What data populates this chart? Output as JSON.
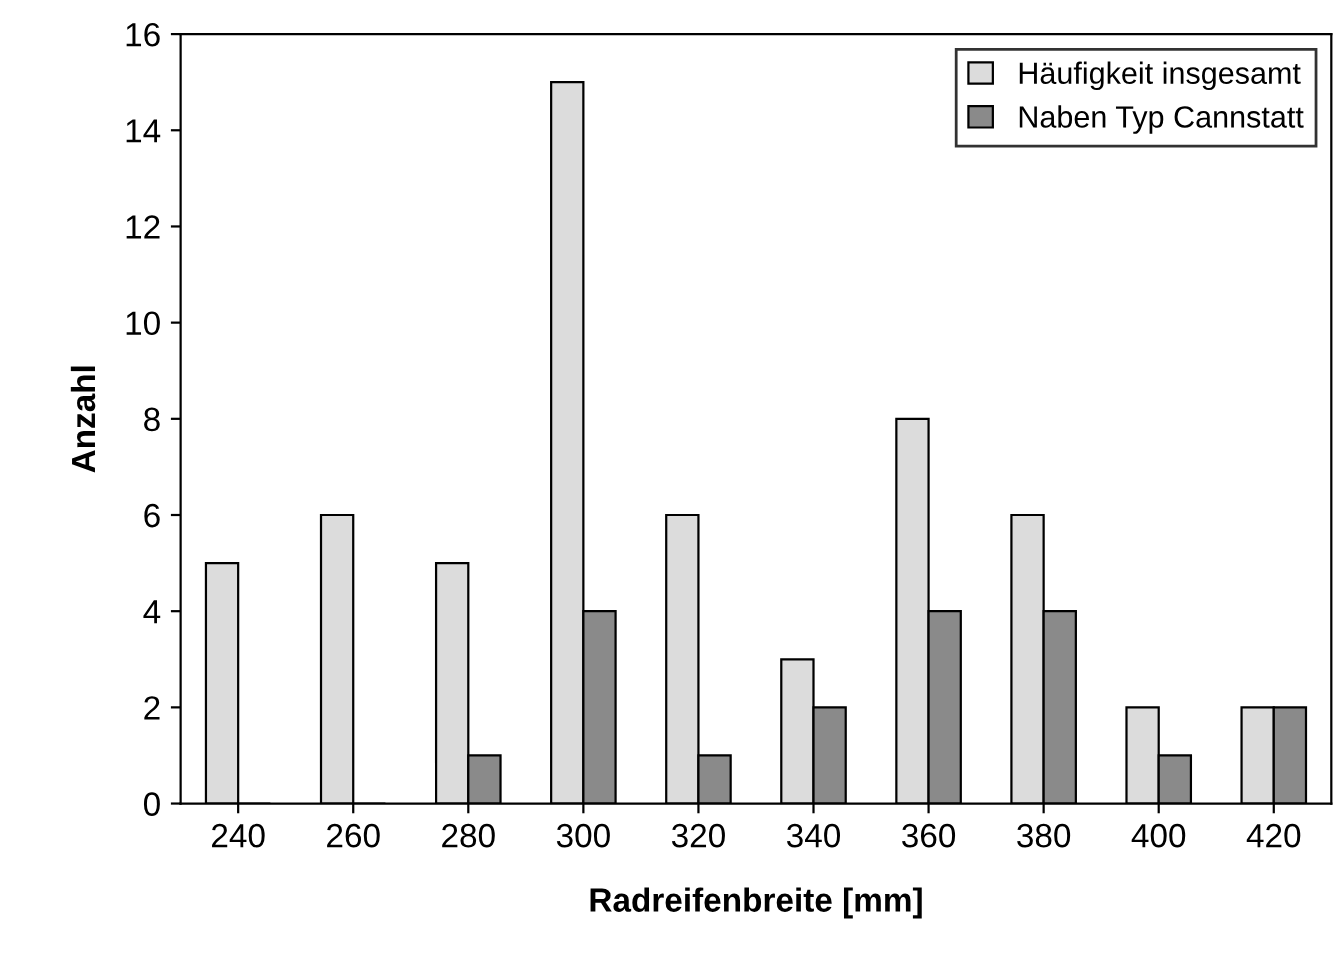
{
  "chart_data": {
    "type": "bar",
    "xlabel": "Radreifenbreite [mm]",
    "ylabel": "Anzahl",
    "categories": [
      "240",
      "260",
      "280",
      "300",
      "320",
      "340",
      "360",
      "380",
      "400",
      "420"
    ],
    "series": [
      {
        "name": "Häufigkeit insgesamt",
        "color": "#dcdcdc",
        "values": [
          5,
          6,
          5,
          15,
          6,
          3,
          8,
          6,
          2,
          2
        ]
      },
      {
        "name": "Naben Typ Cannstatt",
        "color": "#8a8a8a",
        "values": [
          0,
          0,
          1,
          4,
          1,
          2,
          4,
          4,
          1,
          2
        ]
      }
    ],
    "ylim": [
      0,
      16
    ],
    "yticks": [
      0,
      2,
      4,
      6,
      8,
      10,
      12,
      14,
      16
    ],
    "grid": false,
    "legend": "top right"
  }
}
